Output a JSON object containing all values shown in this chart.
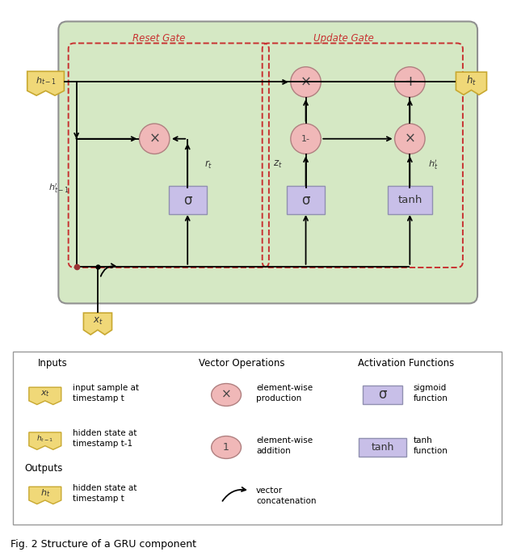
{
  "fig_width": 6.4,
  "fig_height": 6.83,
  "bg_color": "#ffffff",
  "green_bg": "#d5e8c4",
  "pink_circle_face": "#f0b8b8",
  "pink_circle_edge": "#b08080",
  "purple_box_face": "#c8bfe8",
  "purple_box_edge": "#9090b0",
  "yellow_flag_face": "#f0d878",
  "yellow_flag_edge": "#c8a830",
  "dashed_red": "#c83030",
  "green_edge": "#909090",
  "title": "Fig. 2 Structure of a GRU component",
  "reset_gate_label": "Reset Gate",
  "update_gate_label": "Update Gate"
}
